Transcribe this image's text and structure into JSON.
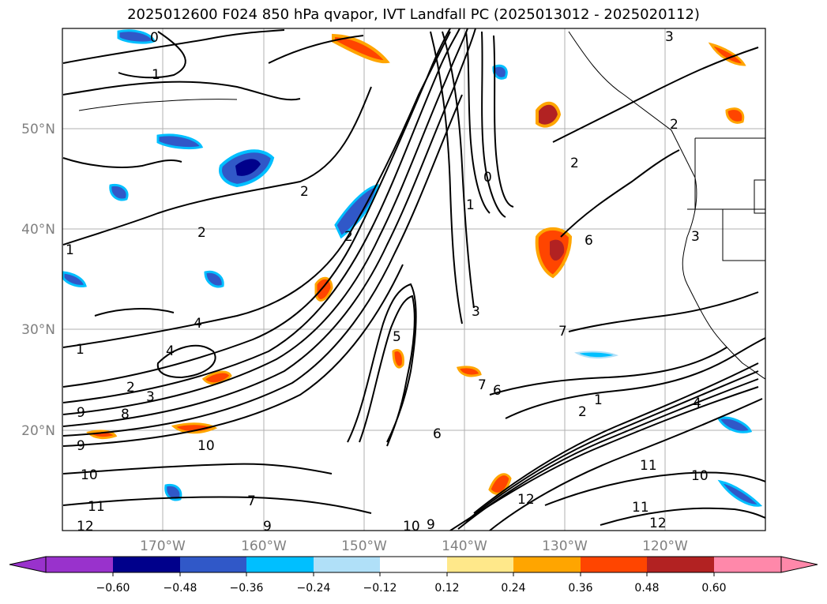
{
  "title": "2025012600 F024 850 hPa qvapor, IVT Landfall PC (2025013012 - 2025020112)",
  "lat_labels": [
    "50°N",
    "40°N",
    "30°N",
    "20°N"
  ],
  "lon_labels": [
    "170°W",
    "160°W",
    "150°W",
    "140°W",
    "130°W",
    "120°W"
  ],
  "colorbar": {
    "ticks": [
      "−0.60",
      "−0.48",
      "−0.36",
      "−0.24",
      "−0.12",
      "0.12",
      "0.24",
      "0.36",
      "0.48",
      "0.60"
    ],
    "under_color": "#9932cc",
    "over_color": "#ff88aa",
    "bin_colors": [
      "#00008b",
      "#3058c8",
      "#00bfff",
      "#b0e0f8",
      "#ffffff",
      "#ffe88a",
      "#ffa500",
      "#ff4500",
      "#b22222"
    ]
  },
  "contour_labels": [
    {
      "text": "0",
      "pos": "top-left"
    },
    {
      "text": "1"
    },
    {
      "text": "2"
    },
    {
      "text": "2"
    },
    {
      "text": "1"
    },
    {
      "text": "4"
    },
    {
      "text": "1"
    },
    {
      "text": "4"
    },
    {
      "text": "2"
    },
    {
      "text": "3"
    },
    {
      "text": "8"
    },
    {
      "text": "9"
    },
    {
      "text": "9"
    },
    {
      "text": "10"
    },
    {
      "text": "10"
    },
    {
      "text": "11"
    },
    {
      "text": "12"
    },
    {
      "text": "7"
    },
    {
      "text": "9"
    },
    {
      "text": "10"
    },
    {
      "text": "9"
    },
    {
      "text": "6"
    },
    {
      "text": "7"
    },
    {
      "text": "6"
    },
    {
      "text": "2"
    },
    {
      "text": "1"
    },
    {
      "text": "4"
    },
    {
      "text": "12"
    },
    {
      "text": "11"
    },
    {
      "text": "10"
    },
    {
      "text": "11"
    },
    {
      "text": "12"
    },
    {
      "text": "2"
    },
    {
      "text": "0"
    },
    {
      "text": "1"
    },
    {
      "text": "2"
    },
    {
      "text": "3"
    },
    {
      "text": "5"
    },
    {
      "text": "2"
    },
    {
      "text": "6"
    },
    {
      "text": "7"
    },
    {
      "text": "3"
    },
    {
      "text": "0"
    },
    {
      "text": "3"
    }
  ]
}
